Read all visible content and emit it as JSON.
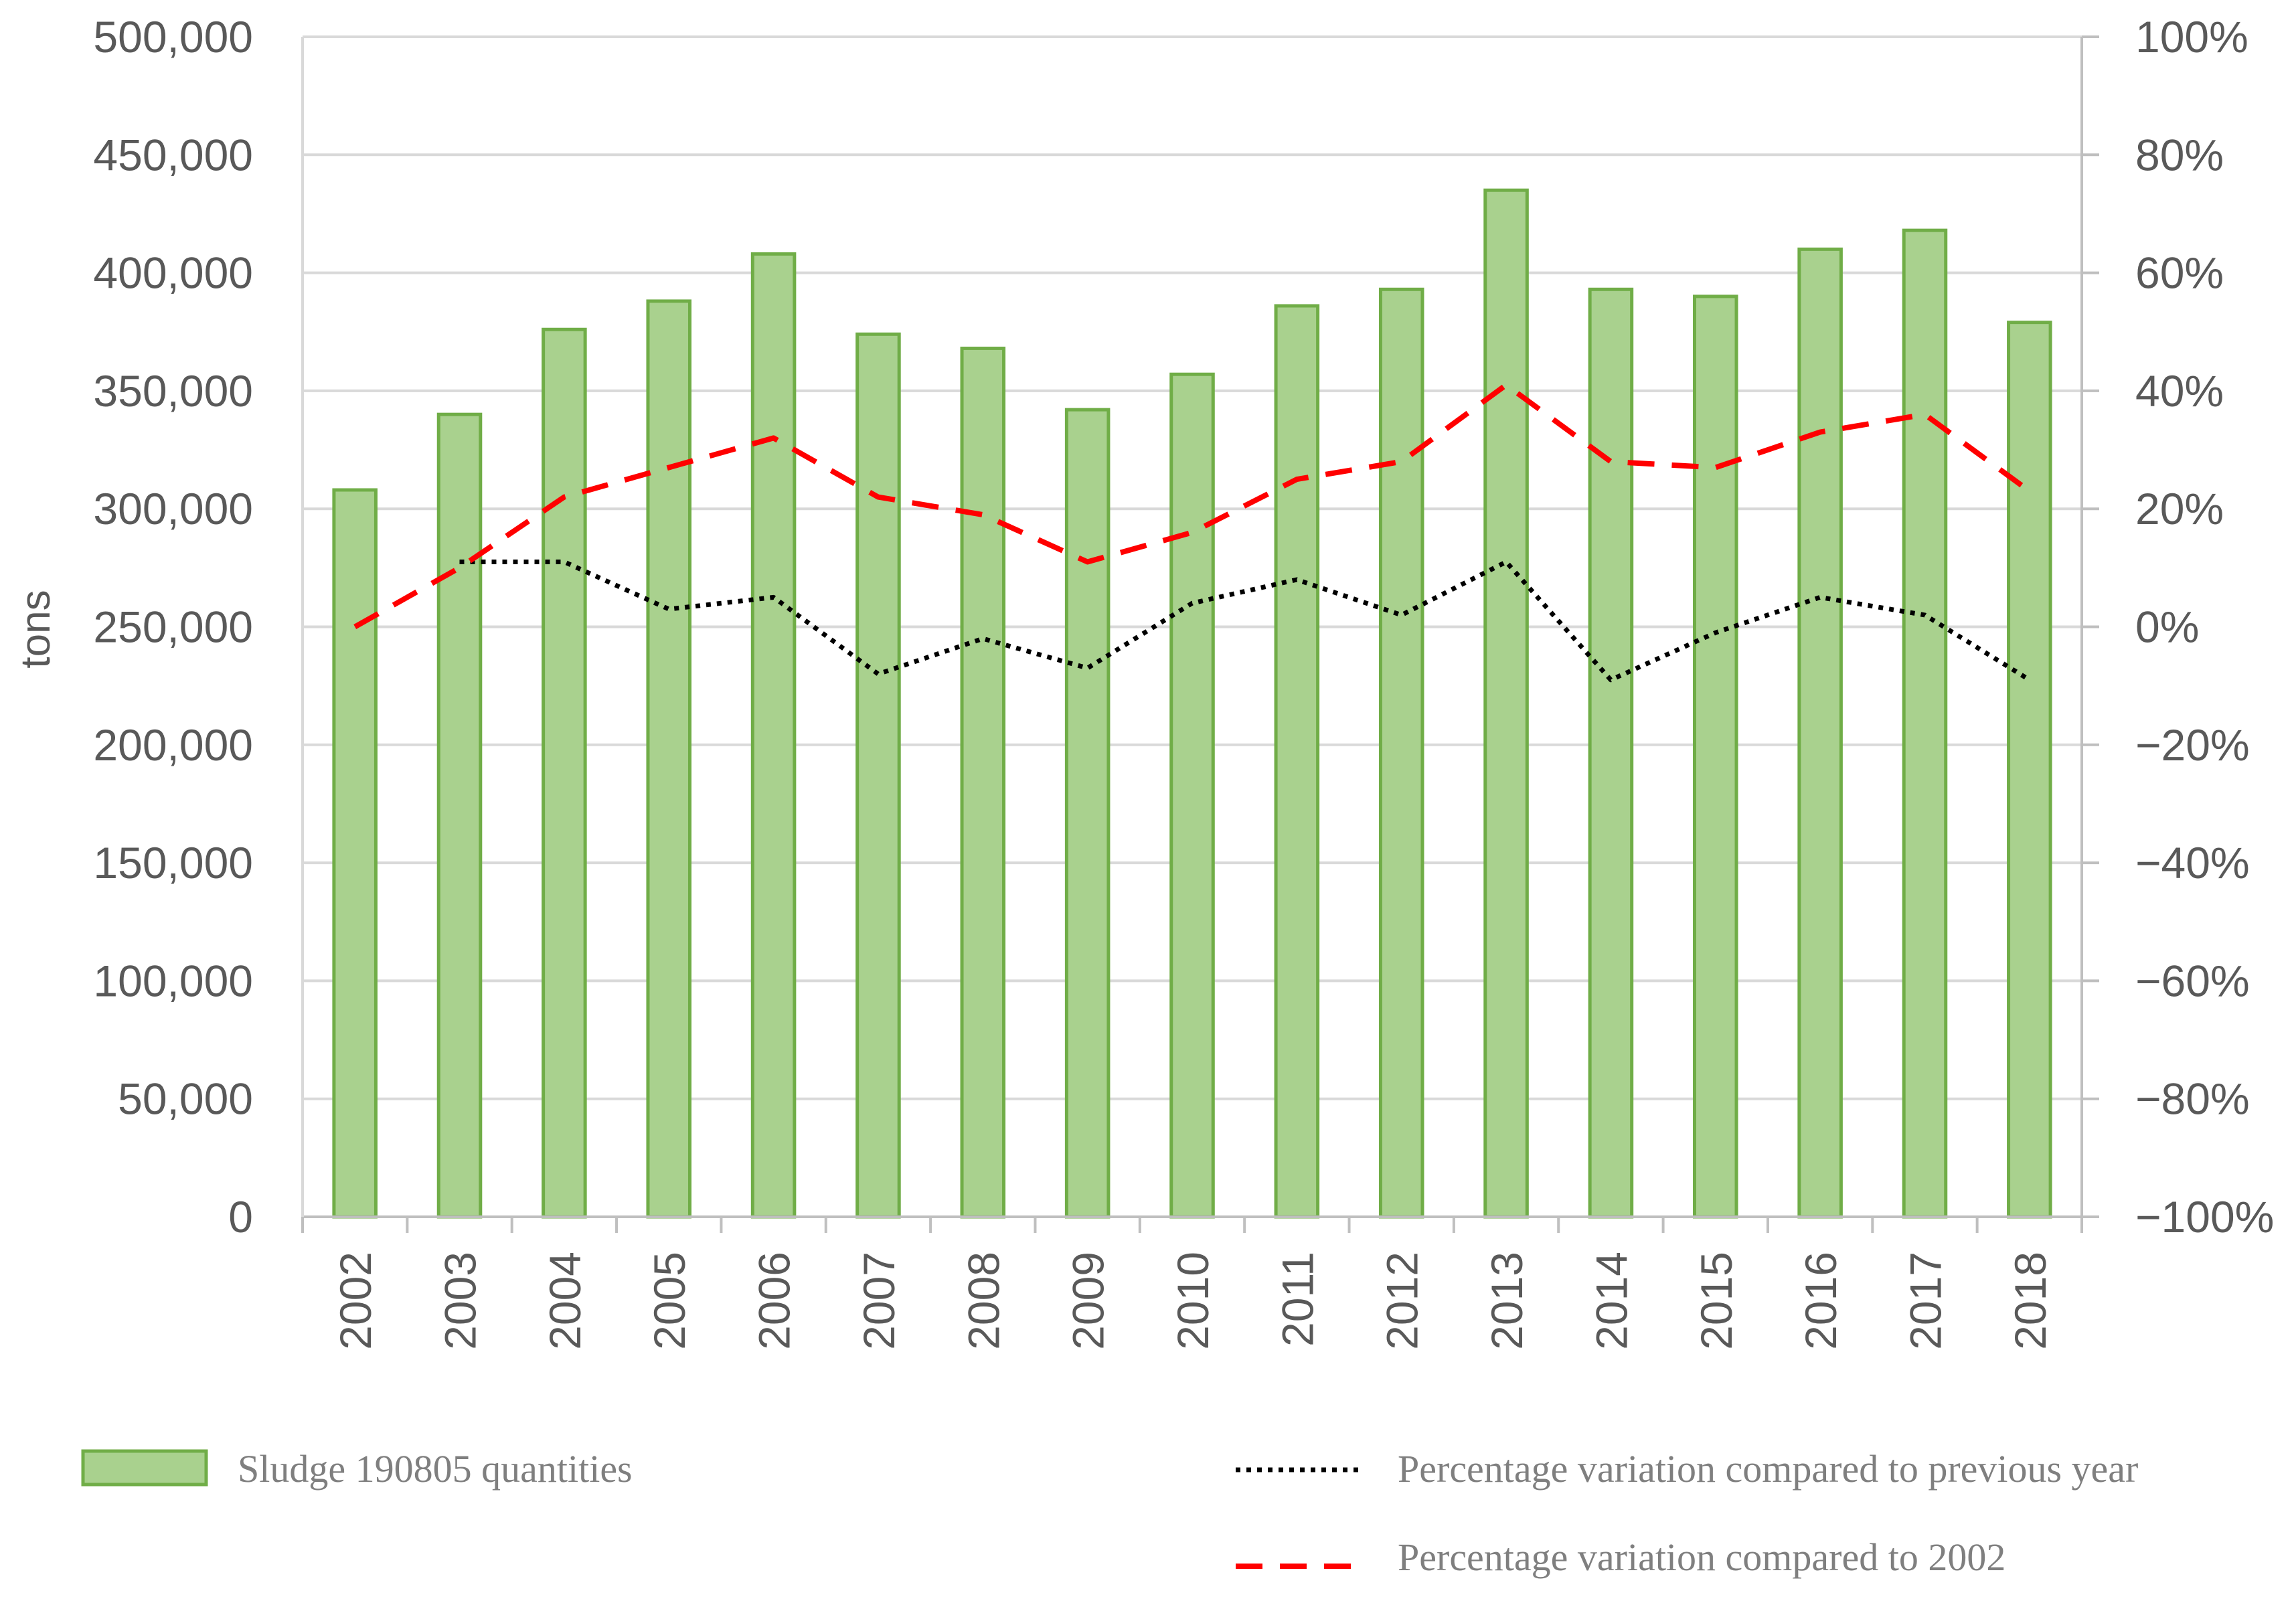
{
  "chart_data": {
    "type": "bar",
    "title": "",
    "xlabel": "",
    "ylabel": "tons",
    "ylim": [
      0,
      500000
    ],
    "y2lim": [
      -100,
      100
    ],
    "grid": true,
    "categories": [
      "2002",
      "2003",
      "2004",
      "2005",
      "2006",
      "2007",
      "2008",
      "2009",
      "2010",
      "2011",
      "2012",
      "2013",
      "2014",
      "2015",
      "2016",
      "2017",
      "2018"
    ],
    "y_ticks": [
      "0",
      "50,000",
      "100,000",
      "150,000",
      "200,000",
      "250,000",
      "300,000",
      "350,000",
      "400,000",
      "450,000",
      "500,000"
    ],
    "y_tick_values": [
      0,
      50000,
      100000,
      150000,
      200000,
      250000,
      300000,
      350000,
      400000,
      450000,
      500000
    ],
    "y2_ticks": [
      "−100%",
      "−80%",
      "−60%",
      "−40%",
      "−20%",
      "0%",
      "20%",
      "40%",
      "60%",
      "80%",
      "100%"
    ],
    "y2_tick_values": [
      -100,
      -80,
      -60,
      -40,
      -20,
      0,
      20,
      40,
      60,
      80,
      100
    ],
    "series": [
      {
        "name": "Sludge 190805 quantities",
        "type": "bar",
        "axis": "left",
        "color": "#a9d18e",
        "edge_color": "#70ad47",
        "values": [
          308000,
          340000,
          376000,
          388000,
          408000,
          374000,
          368000,
          342000,
          357000,
          386000,
          393000,
          435000,
          393000,
          390000,
          410000,
          418000,
          379000
        ]
      },
      {
        "name": "Percentage variation compared to previous year",
        "type": "line",
        "style": "dotted",
        "axis": "right",
        "color": "#000000",
        "values": [
          null,
          11,
          11,
          3,
          5,
          -8,
          -2,
          -7,
          4,
          8,
          2,
          11,
          -9,
          -1,
          5,
          2,
          -9
        ]
      },
      {
        "name": "Percentage variation compared to 2002",
        "type": "line",
        "style": "dashed",
        "axis": "right",
        "color": "#ff0000",
        "values": [
          0,
          10,
          22,
          27,
          32,
          22,
          19,
          11,
          16,
          25,
          28,
          41,
          28,
          27,
          33,
          36,
          23
        ]
      }
    ],
    "legend": {
      "placement": "bottom",
      "labels": [
        "Sludge 190805 quantities",
        "Percentage variation compared to previous year",
        "Percentage variation compared to 2002"
      ]
    }
  }
}
